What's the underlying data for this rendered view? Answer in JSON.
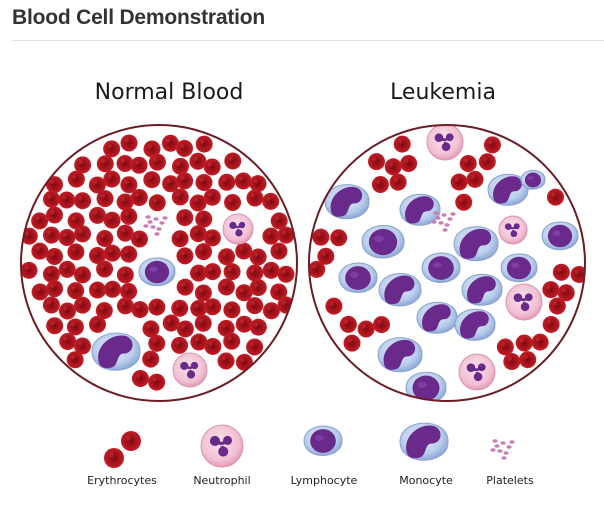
{
  "page": {
    "title": "Blood Cell Demonstration"
  },
  "panels": {
    "normal": {
      "title": "Normal Blood"
    },
    "leukemia": {
      "title": "Leukemia"
    }
  },
  "legend": {
    "erythrocytes": "Erythrocytes",
    "neutrophil": "Neutrophil",
    "lymphocyte": "Lymphocyte",
    "monocyte": "Monocyte",
    "platelets": "Platelets"
  },
  "colors": {
    "rbc": "#b3131b",
    "rbc_center": "#7d0a10",
    "wbc_blue": "#c8d8f0",
    "nucleus": "#6a2a8c",
    "neutrophil": "#f3c6d6",
    "platelet": "#c97fb3",
    "circle_outline": "#6b1c24"
  }
}
